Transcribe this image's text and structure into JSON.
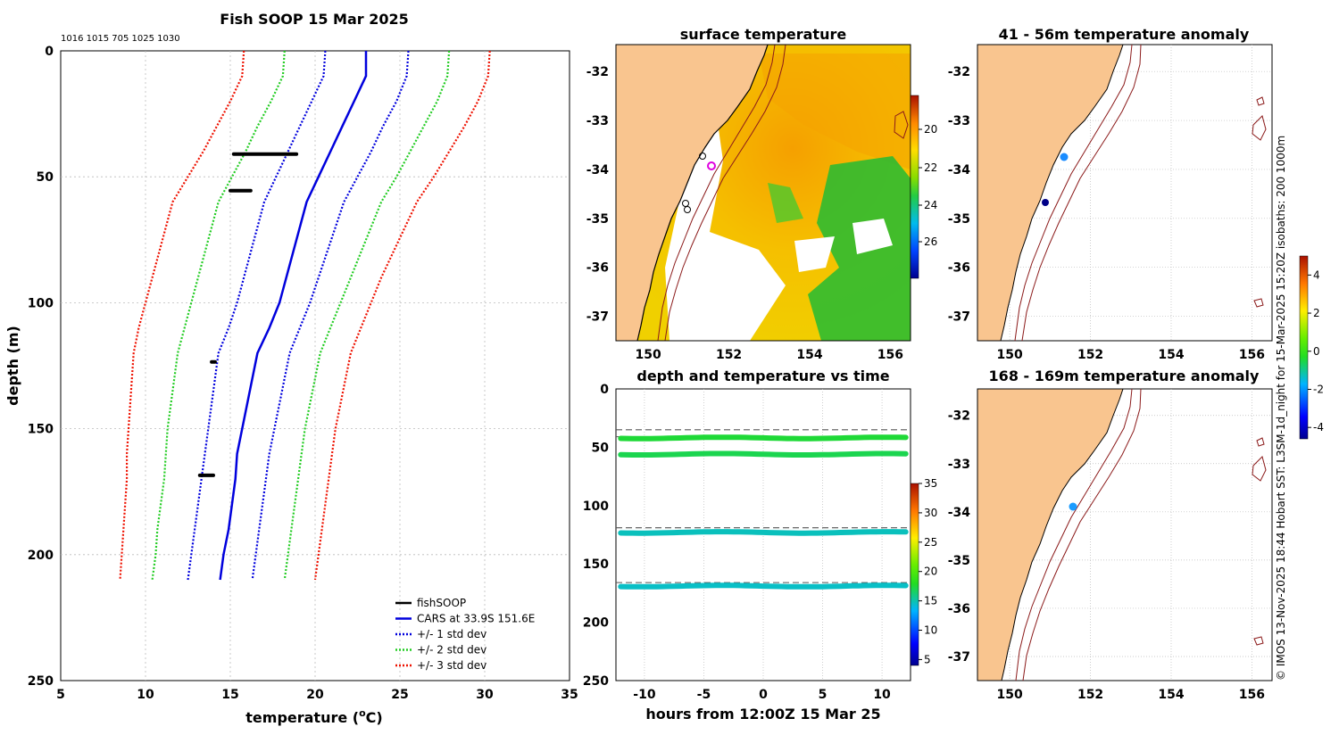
{
  "profile": {
    "title": "Fish SOOP 15 Mar 2025",
    "ids": "1016 1015 705 1025 1030",
    "xlabel": "temperature (",
    "xlabel_sup": "o",
    "xlabel_end": "C)",
    "ylabel": "depth (m)",
    "xlim": [
      5,
      35
    ],
    "ylim": [
      0,
      250
    ],
    "xticks": [
      5,
      10,
      15,
      20,
      25,
      30,
      35
    ],
    "yticks": [
      0,
      50,
      100,
      150,
      200,
      250
    ],
    "legend": [
      {
        "label": "fishSOOP",
        "color": "#000000",
        "dash": false
      },
      {
        "label": "CARS at 33.9S 151.6E",
        "color": "#0000dd",
        "dash": false
      },
      {
        "label": "+/- 1 std dev",
        "color": "#0000dd",
        "dash": true
      },
      {
        "label": "+/- 2 std dev",
        "color": "#22cc22",
        "dash": true
      },
      {
        "label": "+/- 3 std dev",
        "color": "#ee1100",
        "dash": true
      }
    ]
  },
  "chart_data": [
    {
      "type": "line",
      "title": "Fish SOOP 15 Mar 2025",
      "xlabel": "temperature (oC)",
      "ylabel": "depth (m)",
      "xlim": [
        5,
        35
      ],
      "ylim": [
        250,
        0
      ],
      "depth": [
        0,
        10,
        20,
        30,
        40,
        50,
        60,
        70,
        80,
        90,
        100,
        110,
        120,
        130,
        140,
        150,
        160,
        170,
        180,
        190,
        200,
        210
      ],
      "series": [
        {
          "name": "CARS at 33.9S 151.6E",
          "values": [
            23.0,
            23.0,
            22.3,
            21.6,
            20.9,
            20.2,
            19.5,
            19.1,
            18.7,
            18.3,
            17.9,
            17.3,
            16.6,
            16.3,
            16.0,
            15.7,
            15.4,
            15.3,
            15.1,
            14.9,
            14.6,
            14.4
          ]
        },
        {
          "name": "+/- 1 std dev (upper)",
          "values": [
            25.5,
            25.4,
            24.8,
            24.0,
            23.3,
            22.5,
            21.7,
            21.2,
            20.7,
            20.2,
            19.7,
            19.1,
            18.5,
            18.2,
            17.9,
            17.6,
            17.3,
            17.1,
            16.9,
            16.7,
            16.5,
            16.3
          ]
        },
        {
          "name": "+/- 1 std dev (lower)",
          "values": [
            20.6,
            20.5,
            19.8,
            19.1,
            18.4,
            17.7,
            17.0,
            16.6,
            16.2,
            15.8,
            15.4,
            14.9,
            14.3,
            14.1,
            13.9,
            13.7,
            13.5,
            13.3,
            13.1,
            12.9,
            12.7,
            12.5
          ]
        },
        {
          "name": "+/- 2 std dev (upper)",
          "values": [
            27.9,
            27.8,
            27.2,
            26.4,
            25.6,
            24.8,
            23.9,
            23.3,
            22.7,
            22.1,
            21.5,
            20.9,
            20.3,
            20.0,
            19.7,
            19.4,
            19.2,
            19.0,
            18.8,
            18.6,
            18.4,
            18.2
          ]
        },
        {
          "name": "+/- 2 std dev (lower)",
          "values": [
            18.2,
            18.1,
            17.4,
            16.6,
            15.9,
            15.1,
            14.3,
            13.9,
            13.5,
            13.1,
            12.7,
            12.3,
            11.9,
            11.7,
            11.5,
            11.3,
            11.2,
            11.1,
            10.9,
            10.7,
            10.6,
            10.4
          ]
        },
        {
          "name": "+/- 3 std dev (upper)",
          "values": [
            30.3,
            30.2,
            29.6,
            28.8,
            27.9,
            27.0,
            26.0,
            25.3,
            24.6,
            23.9,
            23.3,
            22.7,
            22.1,
            21.8,
            21.5,
            21.2,
            21.0,
            20.8,
            20.6,
            20.4,
            20.2,
            20.0
          ]
        },
        {
          "name": "+/- 3 std dev (lower)",
          "values": [
            15.8,
            15.7,
            15.0,
            14.2,
            13.4,
            12.5,
            11.6,
            11.2,
            10.8,
            10.4,
            10.0,
            9.6,
            9.3,
            9.2,
            9.1,
            9.0,
            8.9,
            8.9,
            8.8,
            8.7,
            8.6,
            8.5
          ]
        }
      ],
      "fishSOOP": [
        {
          "depth": 41,
          "t0": 15.2,
          "t1": 18.9
        },
        {
          "depth": 55.5,
          "t0": 15.0,
          "t1": 16.2
        },
        {
          "depth": 123.5,
          "t0": 13.9,
          "t1": 14.1
        },
        {
          "depth": 168.5,
          "t0": 13.2,
          "t1": 14.0
        }
      ]
    },
    {
      "type": "scatter",
      "title": "depth and temperature vs time",
      "xlabel": "hours from 12:00Z 15 Mar 25",
      "ylabel": "",
      "xlim": [
        -12.4,
        12.4
      ],
      "ylim": [
        250,
        0
      ],
      "xticks": [
        -10,
        -5,
        0,
        5,
        10
      ],
      "yticks": [
        0,
        50,
        100,
        150,
        200,
        250
      ],
      "sensors": [
        {
          "depth": 42,
          "temperature": 17.5
        },
        {
          "depth": 56,
          "temperature": 17.0
        },
        {
          "depth": 123,
          "temperature": 14.7
        },
        {
          "depth": 169,
          "temperature": 14.5
        }
      ],
      "dashed_depths": [
        35,
        41,
        119,
        166
      ]
    }
  ],
  "sst_map": {
    "title": "surface temperature",
    "xticks": [
      "150",
      "152",
      "154",
      "156"
    ],
    "yticks": [
      "-32",
      "-33",
      "-34",
      "-35",
      "-36",
      "-37"
    ],
    "colorbar_ticks": [
      "20",
      "22",
      "24",
      "26"
    ]
  },
  "anom_map_1": {
    "title": "41 - 56m temperature anomaly",
    "xticks": [
      "150",
      "152",
      "154",
      "156"
    ],
    "yticks": [
      "-32",
      "-33",
      "-34",
      "-35",
      "-36",
      "-37"
    ]
  },
  "anom_map_2": {
    "title": "168 - 169m temperature anomaly",
    "xticks": [
      "150",
      "152",
      "154",
      "156"
    ],
    "yticks": [
      "-32",
      "-33",
      "-34",
      "-35",
      "-36",
      "-37"
    ]
  },
  "time_colorbar_ticks": [
    "5",
    "10",
    "15",
    "20",
    "25",
    "30",
    "35"
  ],
  "anom_colorbar_ticks": [
    "-4",
    "-2",
    "0",
    "2",
    "4"
  ],
  "credit": "© IMOS 13-Nov-2025 18:44 Hobart SST: L3SM-1d_night for 15-Mar-2025 15:20Z isobaths: 200  1000m"
}
